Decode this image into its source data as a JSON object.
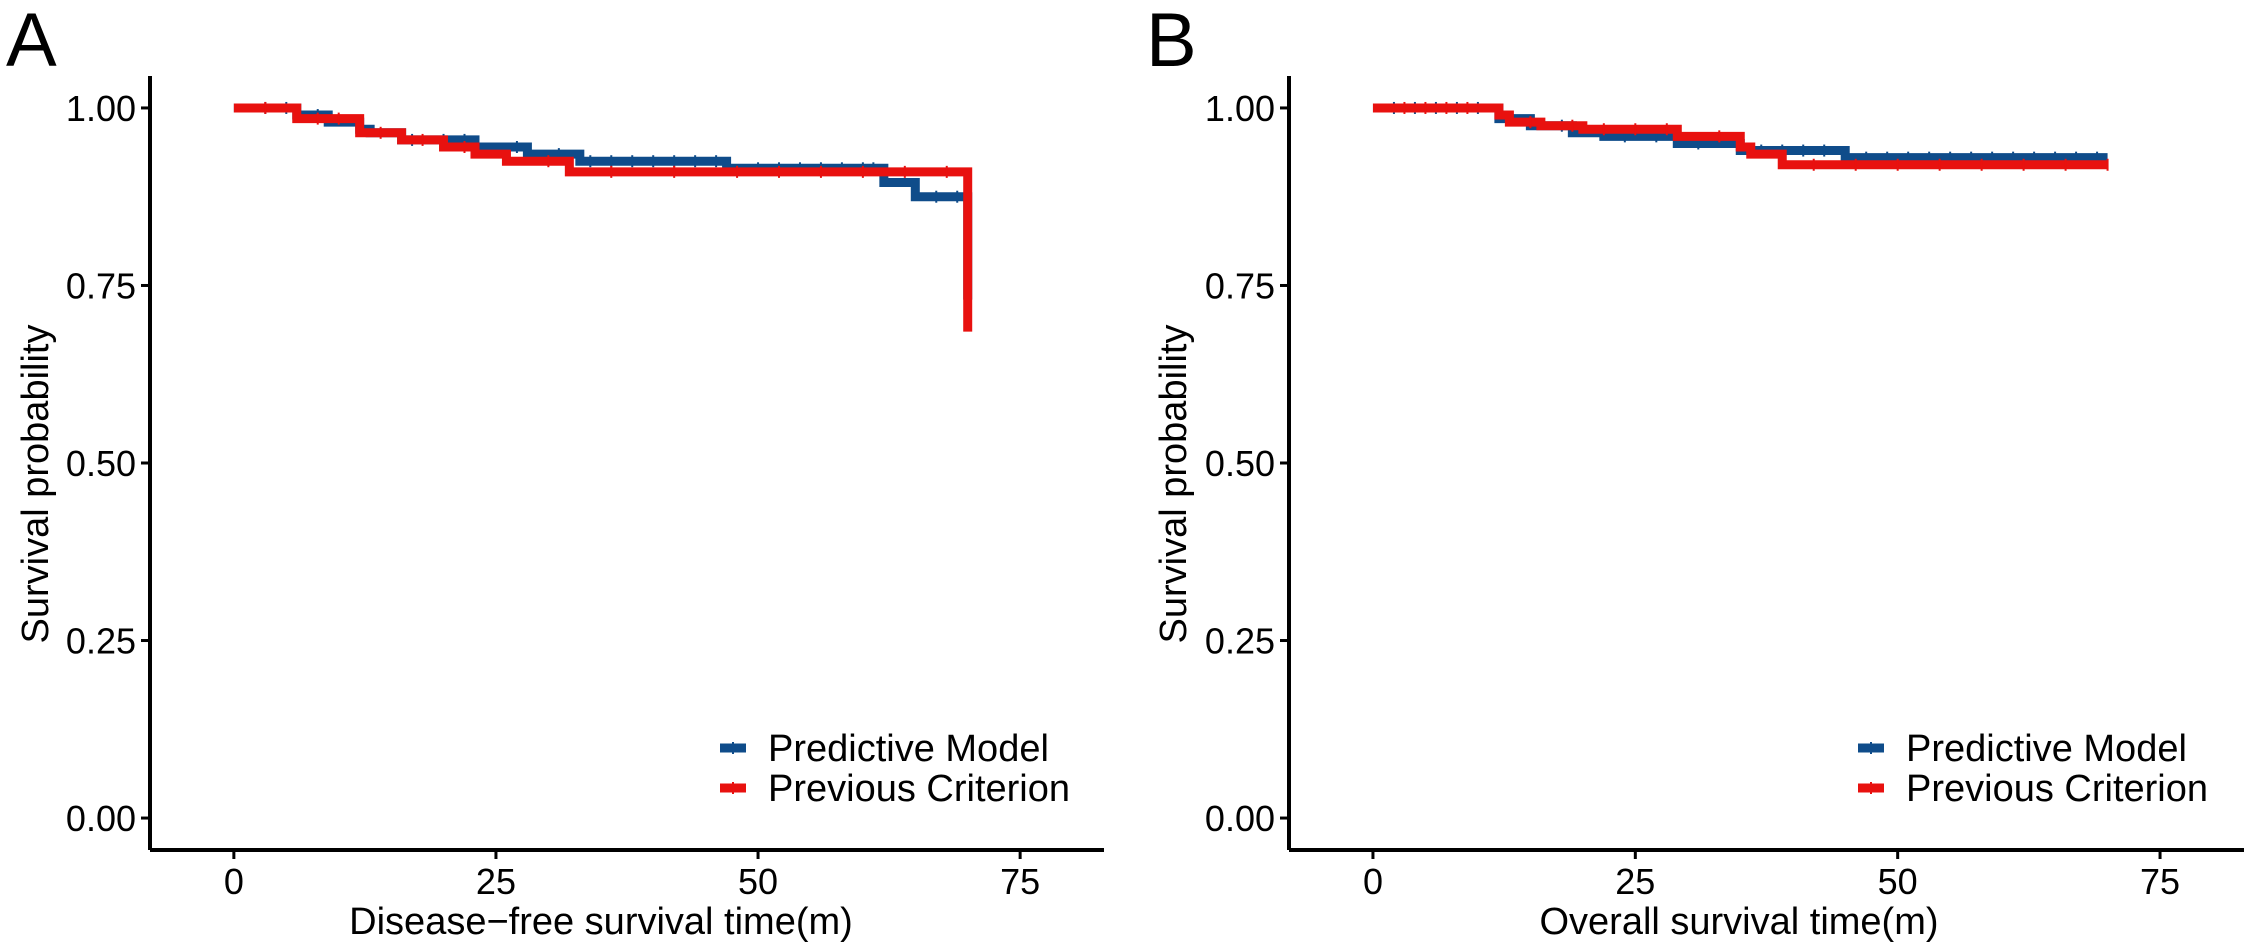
{
  "colors": {
    "predictive": "#0f4c8a",
    "previous": "#e8110f"
  },
  "chart_data": [
    {
      "type": "line",
      "subtype": "kaplan-meier step",
      "panel_label": "A",
      "xlabel": "Disease−free survival time(m)",
      "ylabel": "Survival probability",
      "xlim": [
        -8,
        83
      ],
      "ylim": [
        -0.045,
        1.045
      ],
      "xticks": [
        0,
        25,
        50,
        75
      ],
      "xtick_labels": [
        "0",
        "25",
        "50",
        "75"
      ],
      "yticks": [
        0,
        0.25,
        0.5,
        0.75,
        1.0
      ],
      "ytick_labels": [
        "0.00",
        "0.25",
        "0.50",
        "0.75",
        "1.00"
      ],
      "legend_position": "bottom-right",
      "series": [
        {
          "name": "Predictive Model",
          "color_key": "predictive",
          "steps": [
            [
              0,
              1.0
            ],
            [
              6,
              0.99
            ],
            [
              9,
              0.98
            ],
            [
              12,
              0.97
            ],
            [
              13,
              0.965
            ],
            [
              16,
              0.955
            ],
            [
              23,
              0.945
            ],
            [
              28,
              0.935
            ],
            [
              33,
              0.925
            ],
            [
              47,
              0.915
            ],
            [
              62,
              0.895
            ],
            [
              65,
              0.875
            ],
            [
              70,
              0.73
            ]
          ],
          "end": 70,
          "censor_times": [
            3,
            5,
            8,
            17,
            20,
            22,
            27,
            31,
            34,
            36,
            38,
            40,
            42,
            44,
            46,
            50,
            52,
            54,
            56,
            58,
            60,
            61,
            67,
            69
          ]
        },
        {
          "name": "Previous Criterion",
          "color_key": "previous",
          "steps": [
            [
              0,
              1.0
            ],
            [
              6,
              0.985
            ],
            [
              12,
              0.965
            ],
            [
              16,
              0.955
            ],
            [
              20,
              0.945
            ],
            [
              23,
              0.935
            ],
            [
              26,
              0.925
            ],
            [
              32,
              0.91
            ],
            [
              70,
              0.685
            ]
          ],
          "end": 70,
          "censor_times": [
            3,
            8,
            10,
            14,
            18,
            22,
            30,
            36,
            42,
            48,
            52,
            56,
            60,
            64,
            68
          ]
        }
      ]
    },
    {
      "type": "line",
      "subtype": "kaplan-meier step",
      "panel_label": "B",
      "xlabel": "Overall survival time(m)",
      "ylabel": "Survival probability",
      "xlim": [
        -8,
        83
      ],
      "ylim": [
        -0.045,
        1.045
      ],
      "xticks": [
        0,
        25,
        50,
        75
      ],
      "xtick_labels": [
        "0",
        "25",
        "50",
        "75"
      ],
      "yticks": [
        0,
        0.25,
        0.5,
        0.75,
        1.0
      ],
      "ytick_labels": [
        "0.00",
        "0.25",
        "0.50",
        "0.75",
        "1.00"
      ],
      "legend_position": "bottom-right",
      "series": [
        {
          "name": "Predictive Model",
          "color_key": "predictive",
          "steps": [
            [
              0,
              1.0
            ],
            [
              12,
              0.985
            ],
            [
              15,
              0.975
            ],
            [
              19,
              0.965
            ],
            [
              22,
              0.96
            ],
            [
              29,
              0.95
            ],
            [
              35,
              0.94
            ],
            [
              45,
              0.93
            ]
          ],
          "end": 70,
          "censor_times": [
            2,
            4,
            6,
            8,
            10,
            18,
            24,
            27,
            31,
            37,
            39,
            41,
            43,
            47,
            49,
            51,
            53,
            55,
            57,
            59,
            61,
            63,
            65,
            67,
            69
          ]
        },
        {
          "name": "Previous Criterion",
          "color_key": "previous",
          "steps": [
            [
              0,
              1.0
            ],
            [
              12,
              0.99
            ],
            [
              13,
              0.98
            ],
            [
              16,
              0.975
            ],
            [
              20,
              0.97
            ],
            [
              29,
              0.96
            ],
            [
              35,
              0.945
            ],
            [
              36,
              0.935
            ],
            [
              39,
              0.92
            ]
          ],
          "end": 70,
          "censor_times": [
            3,
            5,
            7,
            9,
            15,
            19,
            22,
            25,
            28,
            33,
            42,
            46,
            50,
            54,
            58,
            62,
            66,
            70
          ]
        }
      ]
    }
  ]
}
